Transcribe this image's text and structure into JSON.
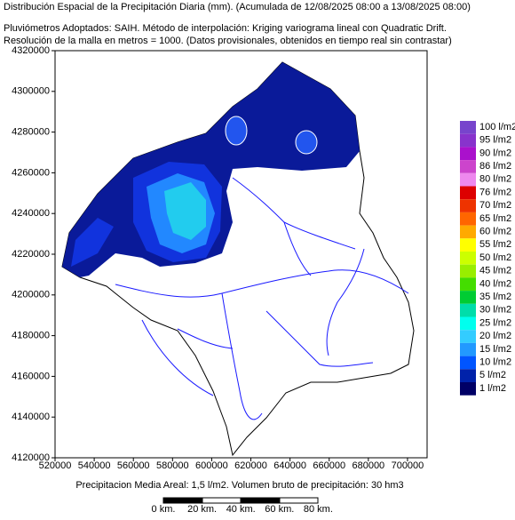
{
  "header": {
    "lines": [
      "Distribución Espacial de la Precipitación Diaria (mm). (Acumulada de 12/08/2025 08:00 a 13/08/2025 08:00)",
      "Pluviómetros Adoptados: SAIH.  Método de interpolación: Kriging variograma lineal con Quadratic Drift.",
      "Resolución de la malla en metros = 1000. (Datos provisionales, obtenidos en tiempo real sin contrastar)"
    ]
  },
  "map": {
    "xlim": [
      520000,
      710000
    ],
    "ylim": [
      4120000,
      4320000
    ],
    "xticks": [
      520000,
      540000,
      560000,
      580000,
      600000,
      620000,
      640000,
      660000,
      680000,
      700000
    ],
    "yticks": [
      4120000,
      4140000,
      4160000,
      4180000,
      4200000,
      4220000,
      4240000,
      4260000,
      4280000,
      4300000,
      4320000
    ]
  },
  "legend": {
    "items": [
      {
        "label": "100 l/m2",
        "color": "#7744cc"
      },
      {
        "label": "95 l/m2",
        "color": "#8833cc"
      },
      {
        "label": "90 l/m2",
        "color": "#aa11cc"
      },
      {
        "label": "86 l/m2",
        "color": "#cc44cc"
      },
      {
        "label": "80 l/m2",
        "color": "#ee88ee"
      },
      {
        "label": "76 l/m2",
        "color": "#dd0000"
      },
      {
        "label": "70 l/m2",
        "color": "#ee3300"
      },
      {
        "label": "65 l/m2",
        "color": "#ff6600"
      },
      {
        "label": "60 l/m2",
        "color": "#ffaa00"
      },
      {
        "label": "55 l/m2",
        "color": "#ffff00"
      },
      {
        "label": "50 l/m2",
        "color": "#ccff00"
      },
      {
        "label": "45 l/m2",
        "color": "#99ee00"
      },
      {
        "label": "40 l/m2",
        "color": "#44dd00"
      },
      {
        "label": "35 l/m2",
        "color": "#00cc33"
      },
      {
        "label": "30 l/m2",
        "color": "#00ddaa"
      },
      {
        "label": "25 l/m2",
        "color": "#00ffee"
      },
      {
        "label": "20 l/m2",
        "color": "#33ccff"
      },
      {
        "label": "15 l/m2",
        "color": "#2299ff"
      },
      {
        "label": "10 l/m2",
        "color": "#0055ff"
      },
      {
        "label": "5 l/m2",
        "color": "#0022aa"
      },
      {
        "label": "1 l/m2",
        "color": "#000066"
      }
    ]
  },
  "footer": "Precipitacion Media Areal: 1,5 l/m2. Volumen bruto de precipitación: 30 hm3",
  "scale_bar": {
    "labels": [
      "0 km.",
      "20 km.",
      "40 km.",
      "60 km.",
      "80 km."
    ]
  }
}
